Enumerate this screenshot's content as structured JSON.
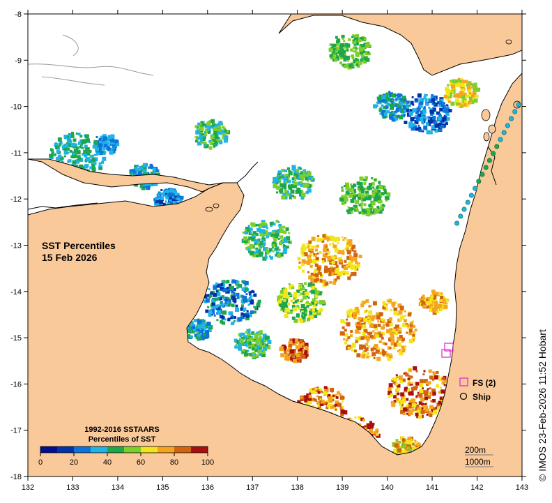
{
  "map": {
    "title_line1": "SST Percentiles",
    "title_line2": "15 Feb 2026",
    "credit": "© IMOS 23-Feb-2026 11:52 Hobart",
    "x_ticks": [
      "132",
      "133",
      "134",
      "135",
      "136",
      "137",
      "138",
      "139",
      "140",
      "141",
      "142",
      "143"
    ],
    "y_ticks": [
      "-8",
      "-9",
      "-10",
      "-11",
      "-12",
      "-13",
      "-14",
      "-15",
      "-16",
      "-17",
      "-18"
    ],
    "legend": {
      "title_line1": "1992-2016 SSTAARS",
      "title_line2": "Percentiles of SST",
      "labels": [
        "0",
        "20",
        "40",
        "60",
        "80",
        "100"
      ],
      "colors": [
        "#000f8c",
        "#0033aa",
        "#0b73d9",
        "#1fb3e6",
        "#1ea64a",
        "#7ccf2a",
        "#f2e61b",
        "#f5a51c",
        "#d2640f",
        "#a80f0f"
      ]
    },
    "key": {
      "fs_label": "FS (2)",
      "ship_label": "Ship"
    },
    "contours": {
      "label_200": "200m",
      "label_1000": "1000m"
    },
    "colors": {
      "land": "#fac99a",
      "ocean": "#ffffff",
      "fs_marker": "#e020d0"
    }
  }
}
